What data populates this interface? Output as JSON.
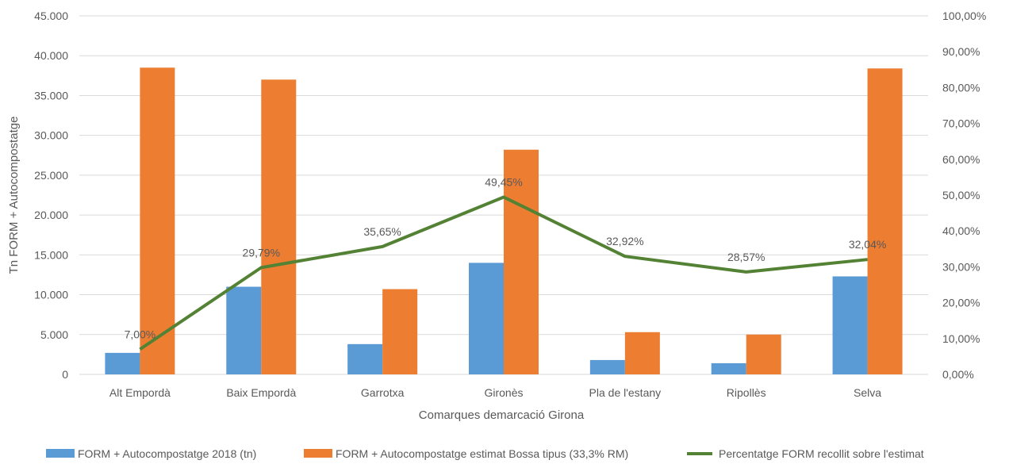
{
  "chart_data": {
    "type": "bar",
    "title": "",
    "xlabel": "Comarques demarcació Girona",
    "ylabel": "Tn FORM + Autocompostatge",
    "ylim": [
      0,
      45000
    ],
    "y2lim": [
      0,
      100
    ],
    "yticks": [
      "0",
      "5.000",
      "10.000",
      "15.000",
      "20.000",
      "25.000",
      "30.000",
      "35.000",
      "40.000",
      "45.000"
    ],
    "y2ticks": [
      "0,00%",
      "10,00%",
      "20,00%",
      "30,00%",
      "40,00%",
      "50,00%",
      "60,00%",
      "70,00%",
      "80,00%",
      "90,00%",
      "100,00%"
    ],
    "grid": true,
    "legend_position": "bottom",
    "categories": [
      "Alt Empordà",
      "Baix Empordà",
      "Garrotxa",
      "Gironès",
      "Pla de l'estany",
      "Ripollès",
      "Selva"
    ],
    "series": [
      {
        "name": "FORM + Autocompostatge 2018 (tn)",
        "type": "bar",
        "axis": "left",
        "color": "#5B9BD5",
        "values": [
          2700,
          11000,
          3800,
          14000,
          1800,
          1400,
          12300
        ]
      },
      {
        "name": "FORM + Autocompostatge estimat Bossa tipus (33,3% RM)",
        "type": "bar",
        "axis": "left",
        "color": "#ED7D31",
        "values": [
          38500,
          37000,
          10700,
          28200,
          5300,
          5000,
          38400
        ]
      },
      {
        "name": "Percentatge FORM recollit sobre l'estimat",
        "type": "line",
        "axis": "right",
        "color": "#548235",
        "values": [
          7.0,
          29.79,
          35.65,
          49.45,
          32.92,
          28.57,
          32.04
        ],
        "labels": [
          "7,00%",
          "29,79%",
          "35,65%",
          "49,45%",
          "32,92%",
          "28,57%",
          "32,04%"
        ]
      }
    ]
  }
}
